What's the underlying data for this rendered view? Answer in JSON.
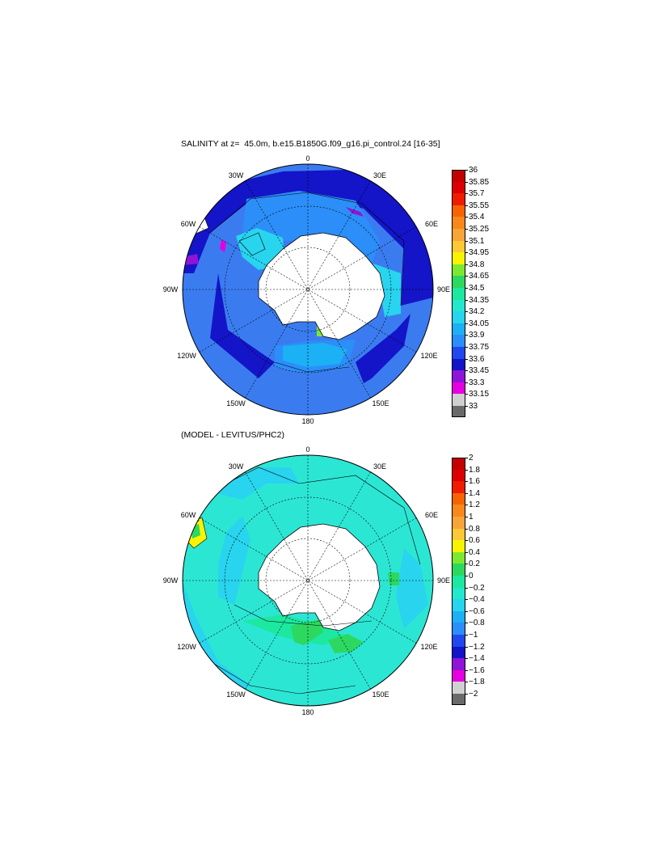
{
  "titles": {
    "top": "SALINITY at z=  45.0m, b.e15.B1850G.f09_g16.pi_control.24 [16-35]",
    "bottom": "(MODEL - LEVITUS/PHC2)"
  },
  "longitude_labels": {
    "0": "0",
    "30E": "30E",
    "60E": "60E",
    "90E": "90E",
    "120E": "120E",
    "150E": "150E",
    "180": "180",
    "150W": "150W",
    "120W": "120W",
    "90W": "90W",
    "60W": "60W",
    "30W": "30W"
  },
  "colors": {
    "land": "#ffffff",
    "ocean_top_base": "#3a7cf0",
    "ocean_bottom_base": "#2ce6d4"
  },
  "colorbars": {
    "top": [
      {
        "label": "36",
        "color": "#c40000"
      },
      {
        "label": "35.85",
        "color": "#dc0000"
      },
      {
        "label": "35.7",
        "color": "#f01c00"
      },
      {
        "label": "35.55",
        "color": "#f56400"
      },
      {
        "label": "35.4",
        "color": "#f8881a"
      },
      {
        "label": "35.25",
        "color": "#f8a438"
      },
      {
        "label": "35.1",
        "color": "#fcc836"
      },
      {
        "label": "34.95",
        "color": "#f8f400"
      },
      {
        "label": "34.8",
        "color": "#7ce830"
      },
      {
        "label": "34.65",
        "color": "#2cd860"
      },
      {
        "label": "34.5",
        "color": "#1ce8a0"
      },
      {
        "label": "34.35",
        "color": "#22e8cc"
      },
      {
        "label": "34.2",
        "color": "#28d4ee"
      },
      {
        "label": "34.05",
        "color": "#1cb0f4"
      },
      {
        "label": "33.9",
        "color": "#2c8ef8"
      },
      {
        "label": "33.75",
        "color": "#2048ec"
      },
      {
        "label": "33.6",
        "color": "#1414c8"
      },
      {
        "label": "33.45",
        "color": "#9014d8"
      },
      {
        "label": "33.3",
        "color": "#e400e0"
      },
      {
        "label": "33.15",
        "color": "#d0d0d0"
      },
      {
        "label": "33",
        "color": "#6a6a6a"
      }
    ],
    "bottom": [
      {
        "label": "2",
        "color": "#c40000"
      },
      {
        "label": "1.8",
        "color": "#dc0000"
      },
      {
        "label": "1.6",
        "color": "#f01c00"
      },
      {
        "label": "1.4",
        "color": "#f56400"
      },
      {
        "label": "1.2",
        "color": "#f8881a"
      },
      {
        "label": "1",
        "color": "#f8a438"
      },
      {
        "label": "0.8",
        "color": "#fcc836"
      },
      {
        "label": "0.6",
        "color": "#f8f400"
      },
      {
        "label": "0.4",
        "color": "#7ce830"
      },
      {
        "label": "0.2",
        "color": "#2cd860"
      },
      {
        "label": "0",
        "color": "#1ce8a0"
      },
      {
        "label": "−0.2",
        "color": "#22e8cc"
      },
      {
        "label": "−0.4",
        "color": "#28d4ee"
      },
      {
        "label": "−0.6",
        "color": "#1cb0f4"
      },
      {
        "label": "−0.8",
        "color": "#2c8ef8"
      },
      {
        "label": "−1",
        "color": "#2048ec"
      },
      {
        "label": "−1.2",
        "color": "#1414c8"
      },
      {
        "label": "−1.4",
        "color": "#9014d8"
      },
      {
        "label": "−1.6",
        "color": "#e400e0"
      },
      {
        "label": "−1.8",
        "color": "#d0d0d0"
      },
      {
        "label": "−2",
        "color": "#6a6a6a"
      }
    ]
  }
}
